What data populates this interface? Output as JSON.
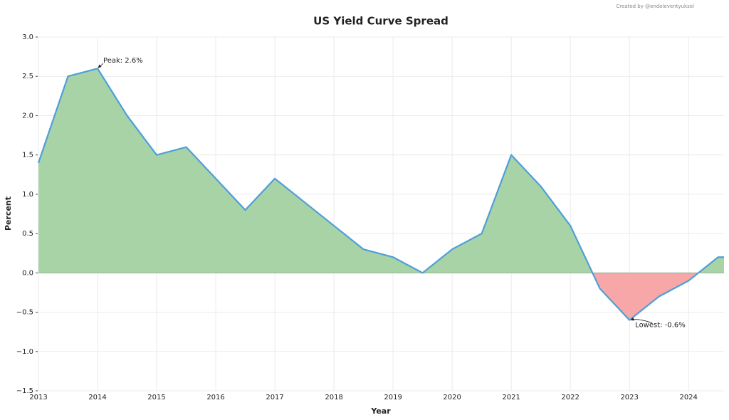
{
  "chart_data": {
    "type": "area-line",
    "title": "US Yield Curve Spread",
    "credit": "Created by @endoleventyuksel",
    "x_label": "Year",
    "y_label": "Percent",
    "x": [
      2013,
      2013.5,
      2014,
      2014.5,
      2015,
      2015.5,
      2016,
      2016.5,
      2017,
      2017.5,
      2018,
      2018.5,
      2019,
      2019.5,
      2020,
      2020.5,
      2021,
      2021.5,
      2022,
      2022.5,
      2023,
      2023.5,
      2024,
      2024.5,
      2024.6
    ],
    "values": [
      1.4,
      2.5,
      2.6,
      2.0,
      1.5,
      1.6,
      1.2,
      0.8,
      1.2,
      0.9,
      0.6,
      0.3,
      0.2,
      0.0,
      0.3,
      0.5,
      1.5,
      1.1,
      0.6,
      -0.2,
      -0.6,
      -0.3,
      -0.1,
      0.2,
      0.2
    ],
    "color": "#4e9fd8",
    "positive_color": "#a8d3a6",
    "negative_color": "#f7a7a8",
    "xlim": [
      2013,
      2024.6
    ],
    "xticks": [
      2013,
      2014,
      2015,
      2016,
      2017,
      2018,
      2019,
      2020,
      2021,
      2022,
      2023,
      2024
    ],
    "ylim": [
      -1.5,
      3.0
    ],
    "yticks": [
      {
        "value": -1.5,
        "label": "−1.5"
      },
      {
        "value": -1.0,
        "label": "−1.0"
      },
      {
        "value": -0.5,
        "label": "−0.5"
      },
      {
        "value": 0,
        "label": "0.0"
      },
      {
        "value": 0.5,
        "label": "0.5"
      },
      {
        "value": 1.0,
        "label": "1.0"
      },
      {
        "value": 1.5,
        "label": "1.5"
      },
      {
        "value": 2.0,
        "label": "2.0"
      },
      {
        "value": 2.5,
        "label": "2.5"
      },
      {
        "value": 3.0,
        "label": "3.0"
      }
    ],
    "grid": true,
    "annotations": [
      {
        "text": "Peak: 2.6%",
        "x": 2014,
        "y": 2.6
      },
      {
        "text": "Lowest: -0.6%",
        "x": 2023,
        "y": -0.6
      }
    ]
  }
}
